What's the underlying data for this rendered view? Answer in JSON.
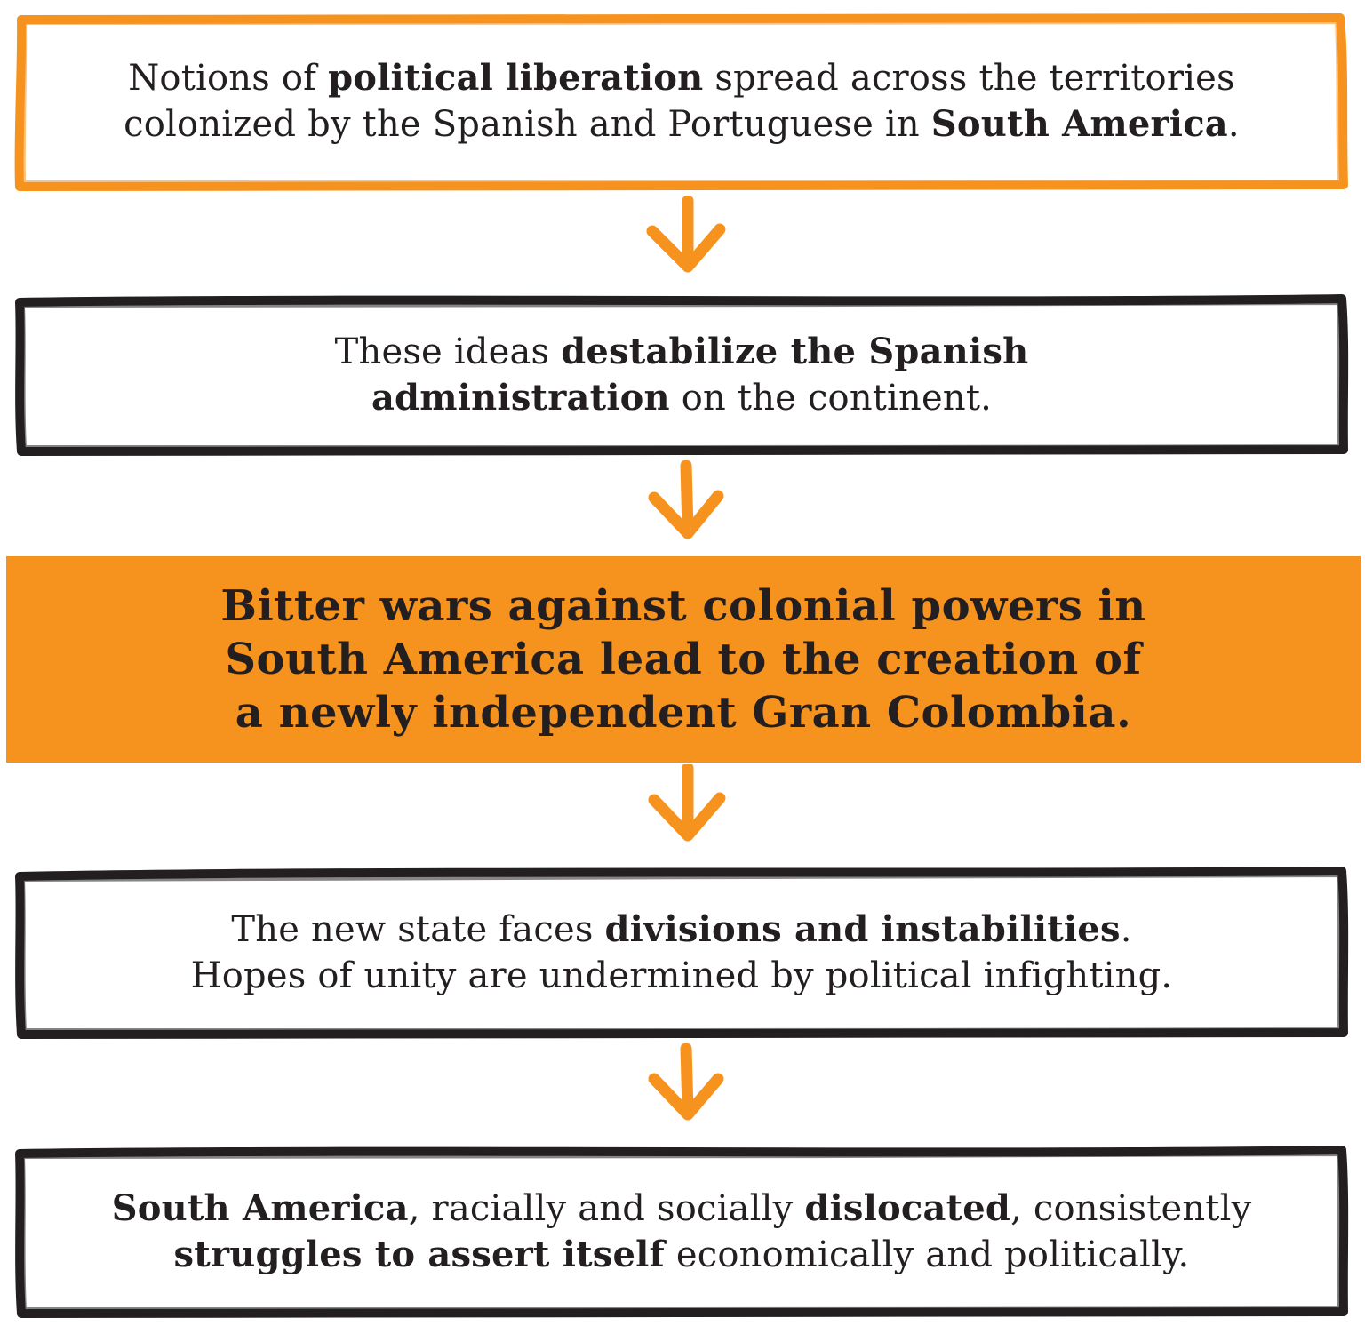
{
  "colors": {
    "accent_orange": "#f6921e",
    "outline_dark": "#231f20",
    "text": "#231f20"
  },
  "boxes": [
    {
      "lines": [
        [
          {
            "text": "Notions of ",
            "bold": false
          },
          {
            "text": "political liberation",
            "bold": true
          },
          {
            "text": " spread across the territories",
            "bold": false
          }
        ],
        [
          {
            "text": "colonized by the Spanish and Portuguese in ",
            "bold": false
          },
          {
            "text": "South America",
            "bold": true
          },
          {
            "text": ".",
            "bold": false
          }
        ]
      ]
    },
    {
      "lines": [
        [
          {
            "text": "These ideas ",
            "bold": false
          },
          {
            "text": "destabilize the Spanish",
            "bold": true
          }
        ],
        [
          {
            "text": "administration",
            "bold": true
          },
          {
            "text": " on the continent.",
            "bold": false
          }
        ]
      ]
    },
    {
      "lines": [
        [
          {
            "text": "Bitter wars against colonial powers in",
            "bold": true
          }
        ],
        [
          {
            "text": "South America lead to the creation of",
            "bold": true
          }
        ],
        [
          {
            "text": "a newly independent Gran Colombia.",
            "bold": true
          }
        ]
      ]
    },
    {
      "lines": [
        [
          {
            "text": "The new state faces ",
            "bold": false
          },
          {
            "text": "divisions and instabilities",
            "bold": true
          },
          {
            "text": ".",
            "bold": false
          }
        ],
        [
          {
            "text": "Hopes of unity are undermined by political infighting.",
            "bold": false
          }
        ]
      ]
    },
    {
      "lines": [
        [
          {
            "text": "South America",
            "bold": true
          },
          {
            "text": ", racially and socially ",
            "bold": false
          },
          {
            "text": "dislocated",
            "bold": true
          },
          {
            "text": ", consistently",
            "bold": false
          }
        ],
        [
          {
            "text": "struggles to assert itself",
            "bold": true
          },
          {
            "text": " economically and politically.",
            "bold": false
          }
        ]
      ]
    }
  ]
}
